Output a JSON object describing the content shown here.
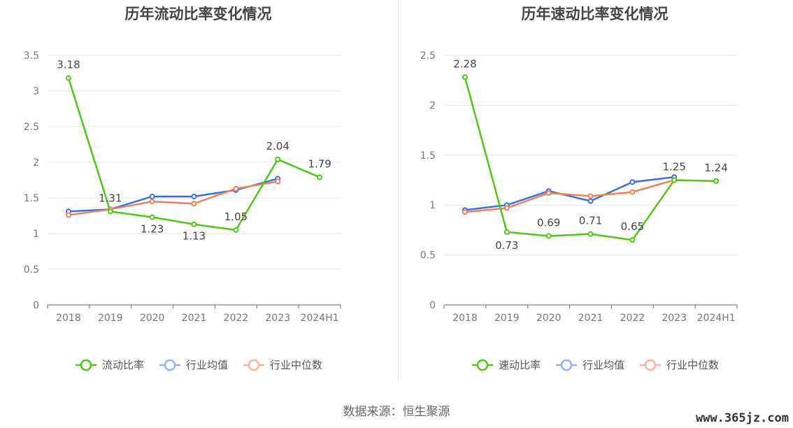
{
  "chart_data": [
    {
      "type": "line",
      "title": "历年流动比率变化情况",
      "categories": [
        "2018",
        "2019",
        "2020",
        "2021",
        "2022",
        "2023",
        "2024H1"
      ],
      "ylim": [
        0,
        3.5
      ],
      "yticks": [
        "0",
        "0.5",
        "1",
        "1.5",
        "2",
        "2.5",
        "3",
        "3.5"
      ],
      "grid": true,
      "legend_position": "bottom",
      "series": [
        {
          "name": "流动比率",
          "color": "#52c41a",
          "values": [
            3.18,
            1.31,
            1.23,
            1.13,
            1.05,
            2.04,
            1.79
          ],
          "labels": [
            "3.18",
            "1.31",
            "1.23",
            "1.13",
            "1.05",
            "2.04",
            "1.79"
          ]
        },
        {
          "name": "行业均值",
          "color": "#3b6fdc",
          "values": [
            1.31,
            1.34,
            1.52,
            1.52,
            1.61,
            1.77,
            null
          ]
        },
        {
          "name": "行业中位数",
          "color": "#f0805a",
          "values": [
            1.26,
            1.34,
            1.45,
            1.42,
            1.63,
            1.73,
            null
          ]
        }
      ]
    },
    {
      "type": "line",
      "title": "历年速动比率变化情况",
      "categories": [
        "2018",
        "2019",
        "2020",
        "2021",
        "2022",
        "2023",
        "2024H1"
      ],
      "ylim": [
        0,
        2.5
      ],
      "yticks": [
        "0",
        "0.5",
        "1",
        "1.5",
        "2",
        "2.5"
      ],
      "grid": true,
      "legend_position": "bottom",
      "series": [
        {
          "name": "速动比率",
          "color": "#52c41a",
          "values": [
            2.28,
            0.73,
            0.69,
            0.71,
            0.65,
            1.25,
            1.24
          ],
          "labels": [
            "2.28",
            "0.73",
            "0.69",
            "0.71",
            "0.65",
            "1.25",
            "1.24"
          ]
        },
        {
          "name": "行业均值",
          "color": "#3b6fdc",
          "values": [
            0.95,
            1.0,
            1.14,
            1.04,
            1.23,
            1.28,
            null
          ]
        },
        {
          "name": "行业中位数",
          "color": "#f0805a",
          "values": [
            0.93,
            0.97,
            1.12,
            1.09,
            1.13,
            1.25,
            null
          ]
        }
      ]
    }
  ],
  "footer": {
    "source": "数据来源：恒生聚源"
  },
  "watermark": "www.365jz.com"
}
